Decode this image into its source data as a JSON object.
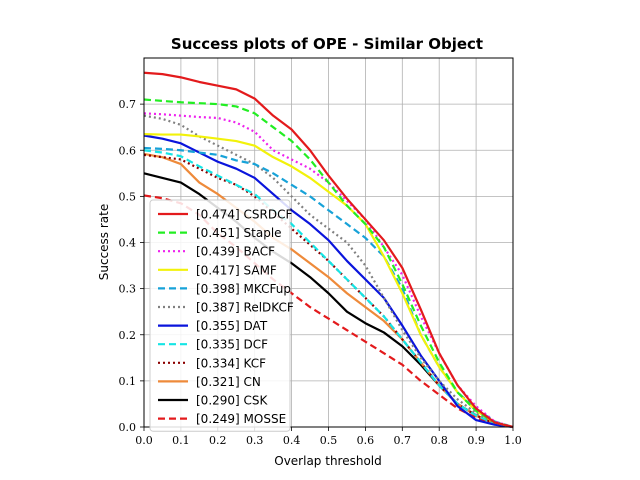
{
  "chart_data": {
    "type": "line",
    "title": "Success plots of OPE - Similar Object",
    "xlabel": "Overlap threshold",
    "ylabel": "Success rate",
    "xlim": [
      0,
      1
    ],
    "ylim": [
      0,
      0.8
    ],
    "xticks": [
      "0.0",
      "0.1",
      "0.2",
      "0.3",
      "0.4",
      "0.5",
      "0.6",
      "0.7",
      "0.8",
      "0.9",
      "1.0"
    ],
    "yticks": [
      "0.0",
      "0.1",
      "0.2",
      "0.3",
      "0.4",
      "0.5",
      "0.6",
      "0.7"
    ],
    "grid": true,
    "legend_position": "lower-left",
    "x": [
      0,
      0.05,
      0.1,
      0.15,
      0.2,
      0.25,
      0.3,
      0.35,
      0.4,
      0.45,
      0.5,
      0.55,
      0.6,
      0.65,
      0.7,
      0.75,
      0.8,
      0.85,
      0.9,
      0.95,
      1.0
    ],
    "series": [
      {
        "name": "[0.474] CSRDCF",
        "color": "#e31a1c",
        "dash": "solid",
        "values": [
          0.768,
          0.765,
          0.758,
          0.748,
          0.74,
          0.732,
          0.712,
          0.675,
          0.645,
          0.6,
          0.545,
          0.495,
          0.45,
          0.405,
          0.345,
          0.255,
          0.16,
          0.09,
          0.04,
          0.01,
          0.0
        ]
      },
      {
        "name": "[0.451] Staple",
        "color": "#22ee22",
        "dash": "dashed",
        "values": [
          0.71,
          0.707,
          0.704,
          0.702,
          0.7,
          0.695,
          0.68,
          0.65,
          0.62,
          0.58,
          0.53,
          0.48,
          0.44,
          0.39,
          0.31,
          0.22,
          0.14,
          0.075,
          0.035,
          0.01,
          0.0
        ]
      },
      {
        "name": "[0.439] BACF",
        "color": "#ee22ee",
        "dash": "dotted",
        "values": [
          0.68,
          0.678,
          0.675,
          0.672,
          0.67,
          0.66,
          0.64,
          0.6,
          0.58,
          0.56,
          0.53,
          0.49,
          0.45,
          0.39,
          0.33,
          0.24,
          0.16,
          0.09,
          0.045,
          0.012,
          0.0
        ]
      },
      {
        "name": "[0.417] SAMF",
        "color": "#f2f20a",
        "dash": "solid",
        "values": [
          0.635,
          0.634,
          0.634,
          0.63,
          0.625,
          0.62,
          0.61,
          0.585,
          0.565,
          0.54,
          0.51,
          0.48,
          0.44,
          0.37,
          0.29,
          0.2,
          0.13,
          0.075,
          0.035,
          0.01,
          0.0
        ]
      },
      {
        "name": "[0.398] MKCFup",
        "color": "#17a2d8",
        "dash": "dashed",
        "values": [
          0.605,
          0.603,
          0.6,
          0.595,
          0.59,
          0.578,
          0.57,
          0.55,
          0.525,
          0.5,
          0.47,
          0.44,
          0.41,
          0.37,
          0.3,
          0.2,
          0.13,
          0.075,
          0.04,
          0.012,
          0.0
        ]
      },
      {
        "name": "[0.387] RelDKCF",
        "color": "#808080",
        "dash": "dotted",
        "values": [
          0.675,
          0.668,
          0.655,
          0.63,
          0.61,
          0.59,
          0.57,
          0.54,
          0.5,
          0.46,
          0.43,
          0.4,
          0.35,
          0.28,
          0.21,
          0.15,
          0.1,
          0.06,
          0.03,
          0.01,
          0.0
        ]
      },
      {
        "name": "[0.355] DAT",
        "color": "#0a14dc",
        "dash": "solid",
        "values": [
          0.632,
          0.625,
          0.615,
          0.595,
          0.575,
          0.56,
          0.54,
          0.505,
          0.47,
          0.44,
          0.405,
          0.36,
          0.32,
          0.28,
          0.22,
          0.155,
          0.1,
          0.045,
          0.015,
          0.005,
          0.0
        ]
      },
      {
        "name": "[0.335] DCF",
        "color": "#15e5e5",
        "dash": "dashed",
        "values": [
          0.6,
          0.595,
          0.587,
          0.565,
          0.545,
          0.525,
          0.505,
          0.47,
          0.44,
          0.4,
          0.36,
          0.32,
          0.28,
          0.24,
          0.19,
          0.14,
          0.09,
          0.05,
          0.025,
          0.008,
          0.0
        ]
      },
      {
        "name": "[0.334] KCF",
        "color": "#8b0000",
        "dash": "dotted",
        "values": [
          0.59,
          0.585,
          0.58,
          0.56,
          0.54,
          0.525,
          0.5,
          0.465,
          0.43,
          0.395,
          0.36,
          0.32,
          0.28,
          0.24,
          0.19,
          0.14,
          0.09,
          0.05,
          0.025,
          0.008,
          0.0
        ]
      },
      {
        "name": "[0.321] CN",
        "color": "#ee8a3a",
        "dash": "solid",
        "values": [
          0.592,
          0.585,
          0.57,
          0.53,
          0.505,
          0.475,
          0.445,
          0.41,
          0.385,
          0.355,
          0.325,
          0.29,
          0.26,
          0.23,
          0.19,
          0.14,
          0.09,
          0.05,
          0.025,
          0.008,
          0.0
        ]
      },
      {
        "name": "[0.290] CSK",
        "color": "#000000",
        "dash": "solid",
        "values": [
          0.55,
          0.54,
          0.53,
          0.505,
          0.475,
          0.445,
          0.41,
          0.38,
          0.355,
          0.325,
          0.29,
          0.25,
          0.225,
          0.205,
          0.175,
          0.135,
          0.09,
          0.05,
          0.025,
          0.008,
          0.0
        ]
      },
      {
        "name": "[0.249] MOSSE",
        "color": "#e31a1c",
        "dash": "dashed",
        "values": [
          0.502,
          0.496,
          0.485,
          0.46,
          0.42,
          0.39,
          0.355,
          0.32,
          0.29,
          0.26,
          0.235,
          0.21,
          0.185,
          0.16,
          0.135,
          0.1,
          0.07,
          0.04,
          0.02,
          0.006,
          0.0
        ]
      }
    ]
  }
}
